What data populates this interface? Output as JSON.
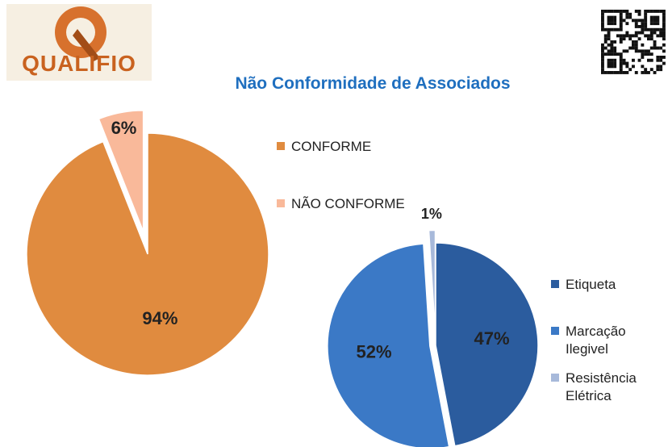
{
  "logo": {
    "text": "QUALIFIO"
  },
  "chart_data": [
    {
      "type": "pie",
      "title": "Não Conformidade de Associados",
      "categories": [
        "CONFORME",
        "NÃO CONFORME"
      ],
      "values": [
        94,
        6
      ],
      "value_labels": [
        "94%",
        "6%"
      ],
      "colors": [
        "#e08b3f",
        "#f9b99a"
      ],
      "legend": "right"
    },
    {
      "type": "pie",
      "categories": [
        "Etiqueta",
        "Marcação Ilegivel",
        "Resistência Elétrica"
      ],
      "values": [
        47,
        52,
        1
      ],
      "value_labels": [
        "47%",
        "52%",
        "1%"
      ],
      "colors": [
        "#2b5c9e",
        "#3b79c6",
        "#a7b9da"
      ],
      "legend": "right"
    }
  ]
}
